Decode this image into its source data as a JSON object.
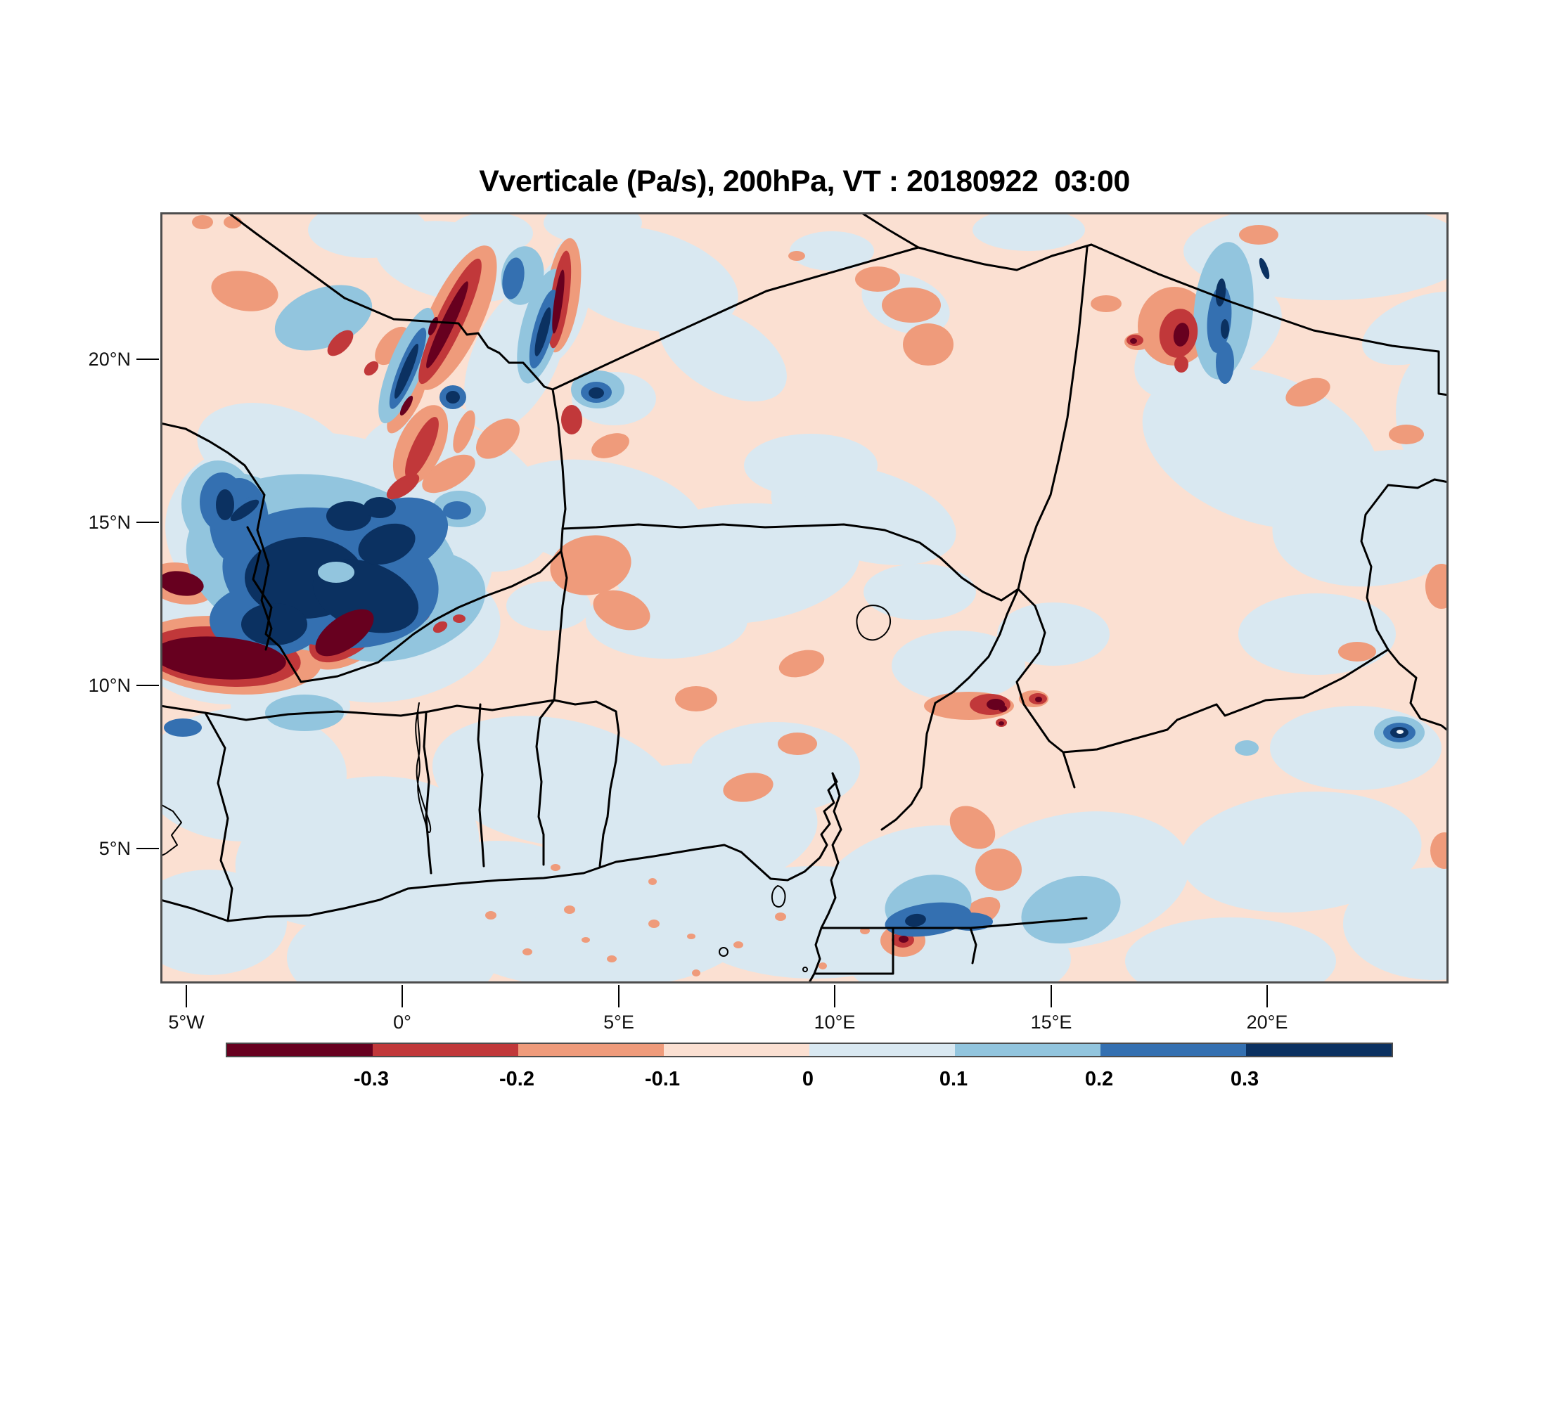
{
  "title": "Vverticale (Pa/s), 200hPa, VT : 20180922  03:00",
  "chart_data": {
    "type": "heatmap",
    "variable": "Vverticale",
    "units": "Pa/s",
    "pressure_level": "200hPa",
    "valid_time": "20180922 03:00",
    "region": "West and Central Africa with country borders, Gulf of Guinea coastline, Lake Volta and Lake Chad outlines",
    "x_axis": {
      "label": "longitude",
      "tick_labels": [
        "5°W",
        "0°",
        "5°E",
        "10°E",
        "15°E",
        "20°E"
      ],
      "tick_values_deg_east": [
        -5,
        0,
        5,
        10,
        15,
        20
      ],
      "range_deg_east": [
        -5.6,
        24.2
      ]
    },
    "y_axis": {
      "label": "latitude",
      "tick_labels": [
        "20°N",
        "15°N",
        "10°N",
        "5°N"
      ],
      "tick_values_deg_north": [
        20,
        15,
        10,
        5
      ],
      "range_deg_north": [
        0.9,
        24.5
      ]
    },
    "colorbar": {
      "orientation": "horizontal",
      "boundary_labels": [
        "-0.3",
        "-0.2",
        "-0.1",
        "0",
        "0.1",
        "0.2",
        "0.3"
      ],
      "boundary_values": [
        -0.3,
        -0.2,
        -0.1,
        0,
        0.1,
        0.2,
        0.3
      ],
      "segment_colors": [
        "#67001f",
        "#c1383a",
        "#ef9b7b",
        "#fbe0d2",
        "#d9e8f1",
        "#92c5de",
        "#3470b1",
        "#0b3161"
      ],
      "frame_color": "#4d4d4d"
    },
    "notable_features": [
      {
        "sign": "negative (strong, < -0.3 Pa/s)",
        "where": "zonal band near 10.5-11.5N from 5.5W to 1.5W with arm rising northeast"
      },
      {
        "sign": "positive (strong, > 0.3 Pa/s)",
        "where": "large dark-blue mass near 11.5-14N, 5.5W-2W"
      },
      {
        "sign": "mixed streaks",
        "where": "alternating NE-SW red/blue streaks over 2W-1E, 15-23N"
      },
      {
        "sign": "couplet red/blue",
        "where": "near 18.5E, 20.5-22N"
      },
      {
        "sign": "negative cluster",
        "where": "near 13-14.5E, 9.5-10.5N"
      },
      {
        "sign": "positive eye with dark core",
        "where": "near 23E, 8.5N"
      },
      {
        "sign": "positive core",
        "where": "near 12.5E, 2.5N on south Cameroon coast"
      }
    ]
  }
}
